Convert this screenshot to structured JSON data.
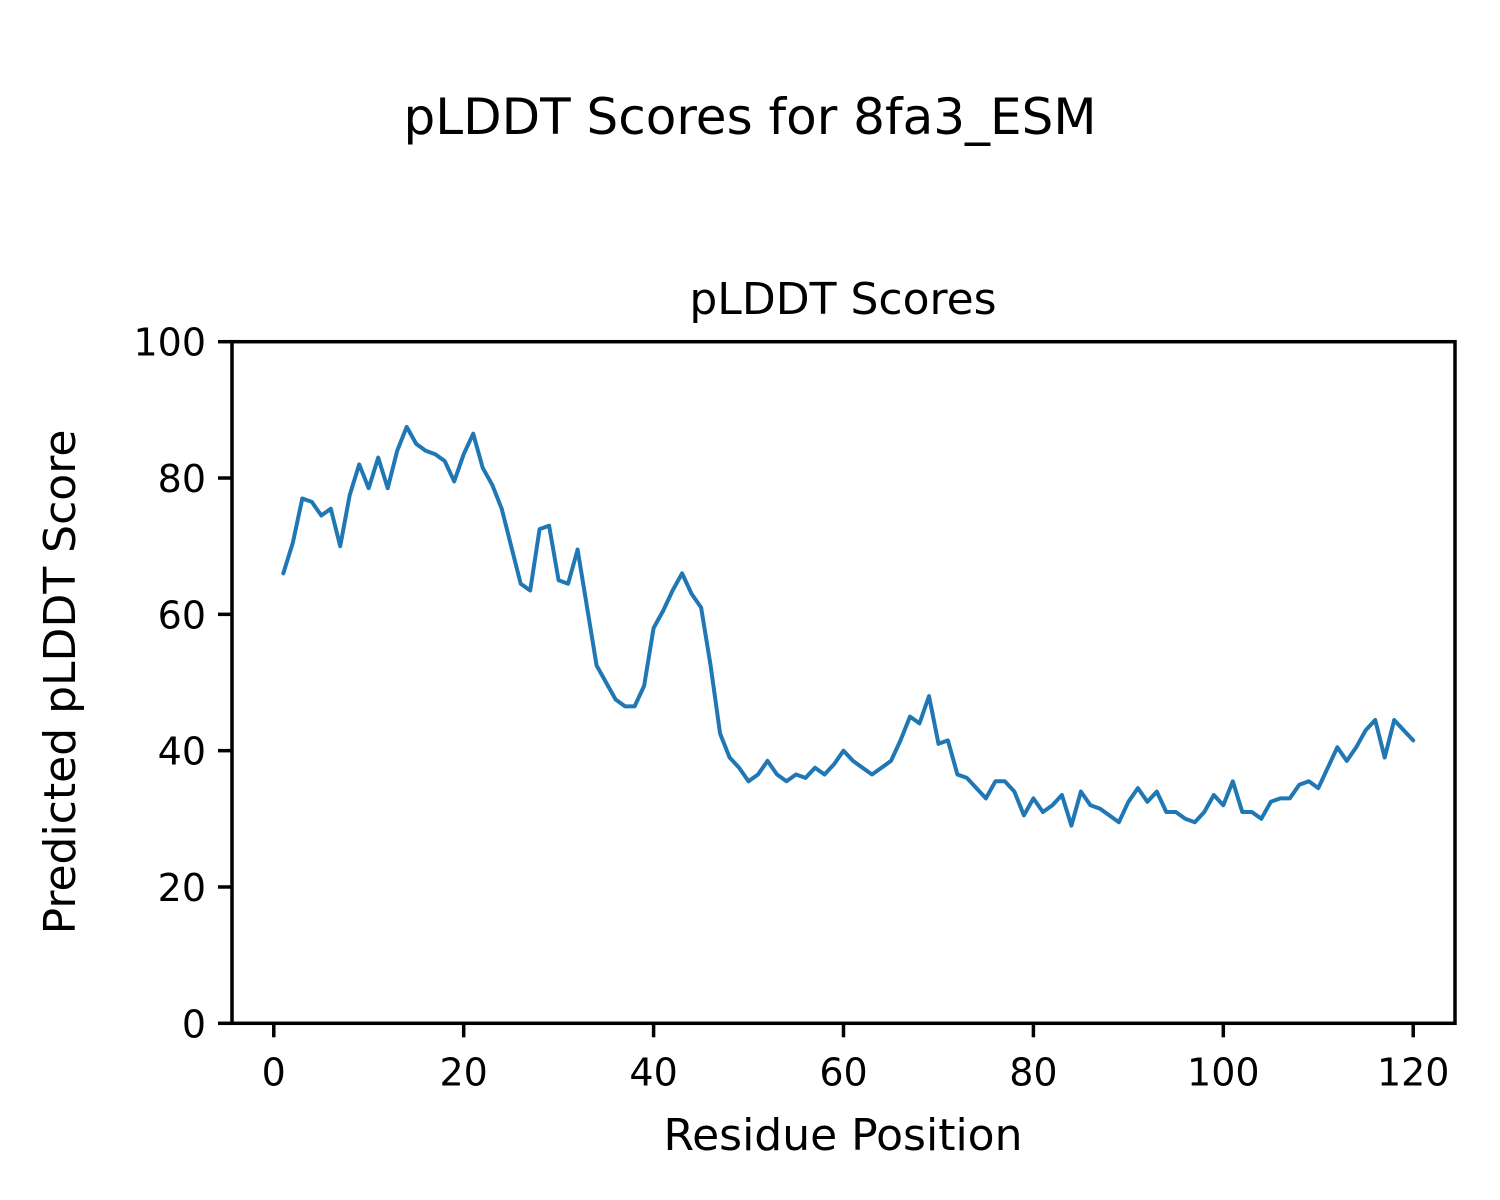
{
  "figure": {
    "background": "#ffffff",
    "suptitle": "pLDDT Scores for 8fa3_ESM"
  },
  "chart_data": {
    "type": "line",
    "title": "pLDDT Scores",
    "xlabel": "Residue Position",
    "ylabel": "Predicted pLDDT Score",
    "series_name": "pLDDT",
    "line_color": "#1f77b4",
    "line_width": 4,
    "grid": false,
    "legend": "none",
    "x_start": 1,
    "xlim": [
      -4.4,
      124.4
    ],
    "ylim": [
      0,
      100
    ],
    "xticks": [
      0,
      20,
      40,
      60,
      80,
      100,
      120
    ],
    "yticks": [
      0,
      20,
      40,
      60,
      80,
      100
    ],
    "values": [
      66,
      70.5,
      77,
      76.5,
      74.5,
      75.5,
      70,
      77.5,
      82,
      78.5,
      83,
      78.5,
      84,
      87.5,
      85,
      84,
      83.5,
      82.5,
      79.5,
      83.5,
      86.5,
      81.5,
      79,
      75.5,
      70,
      64.5,
      63.5,
      72.5,
      73,
      65,
      64.5,
      69.5,
      61,
      52.5,
      50,
      47.5,
      46.5,
      46.5,
      49.5,
      58,
      60.5,
      63.5,
      66,
      63,
      61,
      52.5,
      42.5,
      39,
      37.5,
      35.5,
      36.5,
      38.5,
      36.5,
      35.5,
      36.5,
      36,
      37.5,
      36.5,
      38,
      40,
      38.5,
      37.5,
      36.5,
      37.5,
      38.5,
      41.5,
      45,
      44,
      48,
      41,
      41.5,
      36.5,
      36,
      34.5,
      33,
      35.5,
      35.5,
      34,
      30.5,
      33,
      31,
      32,
      33.5,
      29,
      34,
      32,
      31.5,
      30.5,
      29.5,
      32.5,
      34.5,
      32.5,
      34,
      31,
      31,
      30,
      29.5,
      31,
      33.5,
      32,
      35.5,
      31,
      31,
      30,
      32.5,
      33,
      33,
      35,
      35.5,
      34.5,
      37.5,
      40.5,
      38.5,
      40.5,
      43,
      44.5,
      39,
      44.5,
      43,
      41.5
    ]
  }
}
